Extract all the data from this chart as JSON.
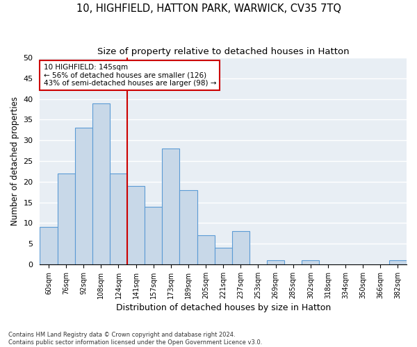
{
  "title": "10, HIGHFIELD, HATTON PARK, WARWICK, CV35 7TQ",
  "subtitle": "Size of property relative to detached houses in Hatton",
  "xlabel": "Distribution of detached houses by size in Hatton",
  "ylabel": "Number of detached properties",
  "categories": [
    "60sqm",
    "76sqm",
    "92sqm",
    "108sqm",
    "124sqm",
    "141sqm",
    "157sqm",
    "173sqm",
    "189sqm",
    "205sqm",
    "221sqm",
    "237sqm",
    "253sqm",
    "269sqm",
    "285sqm",
    "302sqm",
    "318sqm",
    "334sqm",
    "350sqm",
    "366sqm",
    "382sqm"
  ],
  "values": [
    9,
    22,
    33,
    39,
    22,
    19,
    14,
    28,
    18,
    7,
    4,
    8,
    0,
    1,
    0,
    1,
    0,
    0,
    0,
    0,
    1
  ],
  "bar_color": "#c8d8e8",
  "bar_edge_color": "#5b9bd5",
  "background_color": "#e8eef4",
  "grid_color": "#ffffff",
  "vline_x_index": 5,
  "vline_color": "#cc0000",
  "annotation_text": "10 HIGHFIELD: 145sqm\n← 56% of detached houses are smaller (126)\n43% of semi-detached houses are larger (98) →",
  "annotation_box_color": "#cc0000",
  "ylim": [
    0,
    50
  ],
  "yticks": [
    0,
    5,
    10,
    15,
    20,
    25,
    30,
    35,
    40,
    45,
    50
  ],
  "footnote": "Contains HM Land Registry data © Crown copyright and database right 2024.\nContains public sector information licensed under the Open Government Licence v3.0.",
  "title_fontsize": 10.5,
  "subtitle_fontsize": 9.5,
  "xlabel_fontsize": 9,
  "ylabel_fontsize": 8.5
}
